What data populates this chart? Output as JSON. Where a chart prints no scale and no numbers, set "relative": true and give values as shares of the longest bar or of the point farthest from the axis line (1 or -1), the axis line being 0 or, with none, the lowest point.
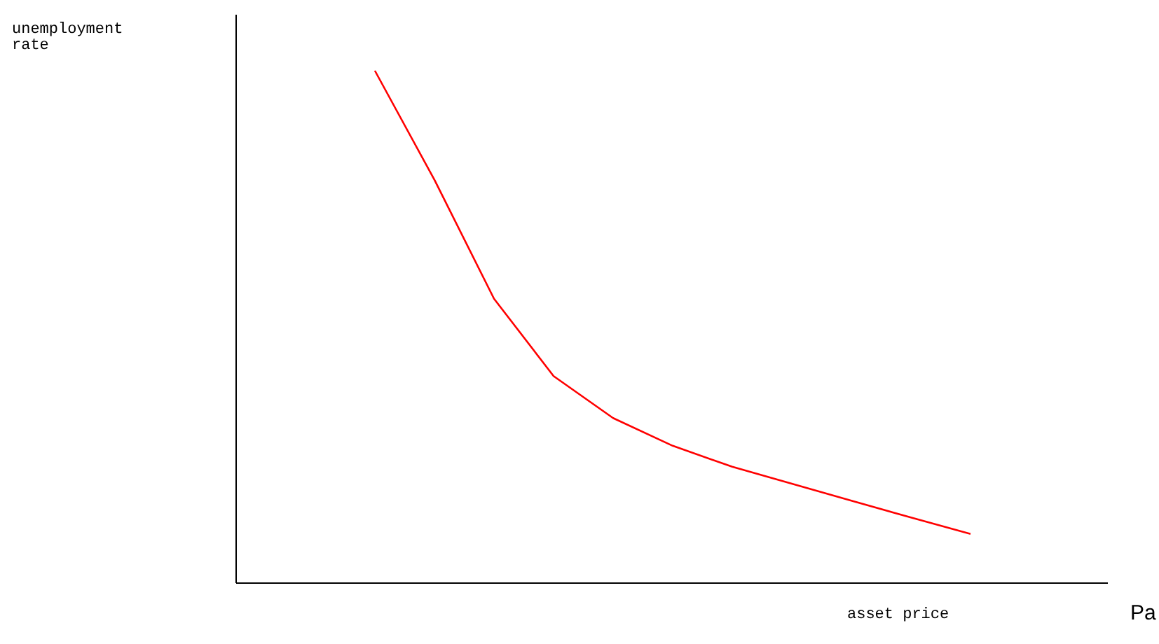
{
  "chart_data": {
    "type": "line",
    "relative": true,
    "xlabel": "asset price",
    "annotations": [
      "unemployment rate",
      "Pa"
    ],
    "categories": [
      null,
      null,
      null,
      null,
      null,
      null,
      null,
      null,
      null,
      null,
      null
    ],
    "series": [
      {
        "color": "#ff0000",
        "values": [
          1,
          0.787,
          0.555,
          0.404,
          0.322,
          0.268,
          0.227,
          0.194,
          0.161,
          0.128,
          0.096
        ]
      }
    ]
  }
}
